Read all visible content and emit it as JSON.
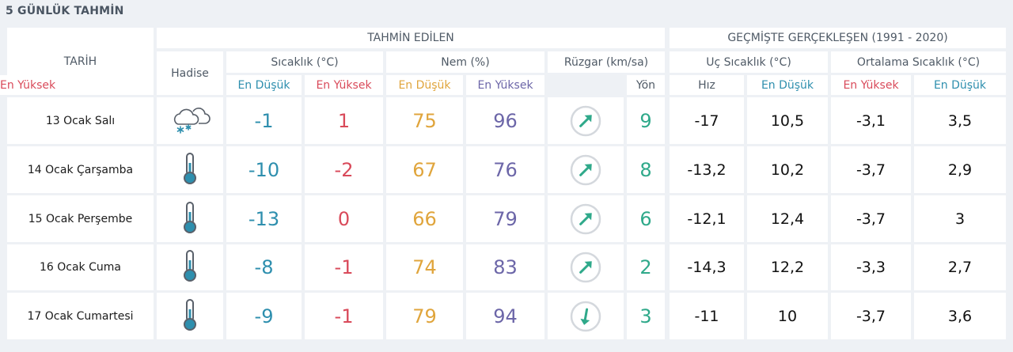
{
  "title": "5 GÜNLÜK TAHMİN",
  "header": {
    "date_col": "TARİH",
    "forecast_group": "TAHMİN EDİLEN",
    "history_group": "GEÇMİŞTE GERÇEKLEŞEN (1991 - 2020)",
    "event": "Hadise",
    "temperature": "Sıcaklık (°C)",
    "humidity": "Nem (%)",
    "wind": "Rüzgar (km/sa)",
    "extreme_temp": "Uç Sıcaklık (°C)",
    "average_temp": "Ortalama Sıcaklık (°C)",
    "min": "En Düşük",
    "max": "En Yüksek",
    "direction": "Yön",
    "speed": "Hız"
  },
  "colors": {
    "low": "#2e8fae",
    "high": "#d94a5a",
    "humidity_low": "#e0a53c",
    "humidity_high": "#6c66a8",
    "wind": "#2fa98a"
  },
  "rows": [
    {
      "date": "13 Ocak Salı",
      "icon": "cloud-snow-icon",
      "temp_min": "-1",
      "temp_max": "1",
      "hum_min": "75",
      "hum_max": "96",
      "wind_dir": "northeast-arrow-icon",
      "wind_speed": "9",
      "hist_min": "-17",
      "hist_max": "10,5",
      "avg_min": "-3,1",
      "avg_max": "3,5"
    },
    {
      "date": "14 Ocak Çarşamba",
      "icon": "thermometer-icon",
      "temp_min": "-10",
      "temp_max": "-2",
      "hum_min": "67",
      "hum_max": "76",
      "wind_dir": "northeast-arrow-icon",
      "wind_speed": "8",
      "hist_min": "-13,2",
      "hist_max": "10,2",
      "avg_min": "-3,7",
      "avg_max": "2,9"
    },
    {
      "date": "15 Ocak Perşembe",
      "icon": "thermometer-icon",
      "temp_min": "-13",
      "temp_max": "0",
      "hum_min": "66",
      "hum_max": "79",
      "wind_dir": "northeast-arrow-icon",
      "wind_speed": "6",
      "hist_min": "-12,1",
      "hist_max": "12,4",
      "avg_min": "-3,7",
      "avg_max": "3"
    },
    {
      "date": "16 Ocak Cuma",
      "icon": "thermometer-icon",
      "temp_min": "-8",
      "temp_max": "-1",
      "hum_min": "74",
      "hum_max": "83",
      "wind_dir": "northeast-arrow-icon",
      "wind_speed": "2",
      "hist_min": "-14,3",
      "hist_max": "12,2",
      "avg_min": "-3,3",
      "avg_max": "2,7"
    },
    {
      "date": "17 Ocak Cumartesi",
      "icon": "thermometer-icon",
      "temp_min": "-9",
      "temp_max": "-1",
      "hum_min": "79",
      "hum_max": "94",
      "wind_dir": "south-arrow-icon",
      "wind_speed": "3",
      "hist_min": "-11",
      "hist_max": "10",
      "avg_min": "-3,7",
      "avg_max": "3,6"
    }
  ]
}
